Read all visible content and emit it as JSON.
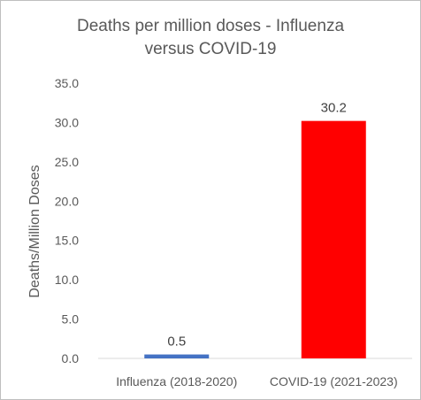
{
  "chart_data": {
    "type": "bar",
    "title_lines": [
      "Deaths per million doses - Influenza",
      "versus COVID-19"
    ],
    "ylabel": "Deaths/Million Doses",
    "xlabel": "",
    "categories": [
      "Influenza (2018-2020)",
      "COVID-19 (2021-2023)"
    ],
    "values": [
      0.5,
      30.2
    ],
    "data_labels": [
      "0.5",
      "30.2"
    ],
    "bar_colors": [
      "#4472c4",
      "#ff0000"
    ],
    "ylim": [
      0,
      35
    ],
    "yticks": [
      "0.0",
      "5.0",
      "10.0",
      "15.0",
      "20.0",
      "25.0",
      "30.0",
      "35.0"
    ],
    "grid": false,
    "legend": "none"
  }
}
